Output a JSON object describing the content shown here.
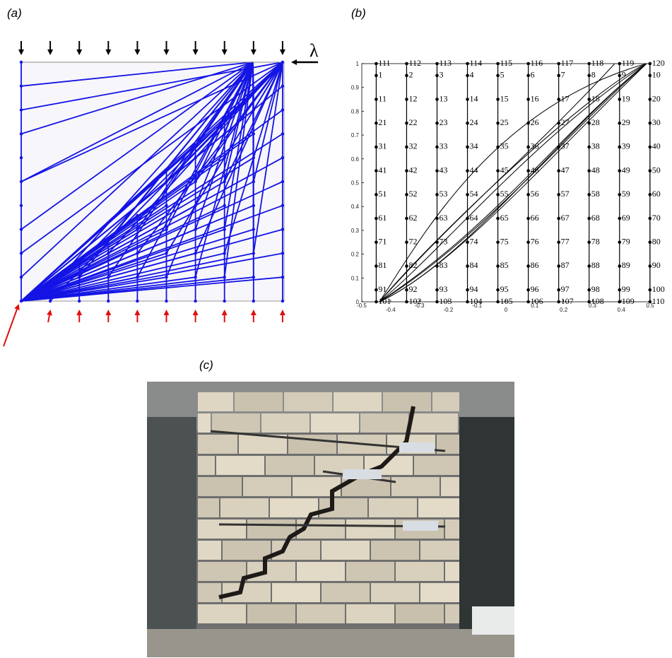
{
  "panels": {
    "a": {
      "label": "(a)",
      "load_symbol": "λ"
    },
    "b": {
      "label": "(b)",
      "xlim": [
        -0.5,
        0.5
      ],
      "ylim": [
        0,
        1
      ],
      "xticks": [
        -0.5,
        -0.4,
        -0.3,
        -0.2,
        -0.1,
        0,
        0.1,
        0.2,
        0.3,
        0.4,
        0.5
      ],
      "yticks": [
        0,
        0.1,
        0.2,
        0.3,
        0.4,
        0.5,
        0.6,
        0.7,
        0.8,
        0.9,
        1
      ],
      "node_rows": [
        [
          111,
          112,
          113,
          114,
          115,
          116,
          117,
          118,
          119,
          120
        ],
        [
          1,
          2,
          3,
          4,
          5,
          6,
          7,
          8,
          9,
          10
        ],
        [
          11,
          12,
          13,
          14,
          15,
          16,
          17,
          18,
          19,
          20
        ],
        [
          21,
          22,
          23,
          24,
          25,
          26,
          27,
          28,
          29,
          30
        ],
        [
          31,
          32,
          33,
          34,
          35,
          36,
          37,
          38,
          39,
          40
        ],
        [
          41,
          42,
          43,
          44,
          45,
          46,
          47,
          48,
          49,
          50
        ],
        [
          51,
          52,
          53,
          54,
          55,
          56,
          57,
          58,
          59,
          60
        ],
        [
          61,
          62,
          63,
          64,
          65,
          66,
          67,
          68,
          69,
          70
        ],
        [
          71,
          72,
          73,
          74,
          75,
          76,
          77,
          78,
          79,
          80
        ],
        [
          81,
          82,
          83,
          84,
          85,
          86,
          87,
          88,
          89,
          90
        ],
        [
          91,
          92,
          93,
          94,
          95,
          96,
          97,
          98,
          99,
          100
        ],
        [
          101,
          102,
          103,
          104,
          105,
          106,
          107,
          108,
          109,
          110
        ]
      ]
    },
    "c": {
      "label": "(c)"
    }
  }
}
